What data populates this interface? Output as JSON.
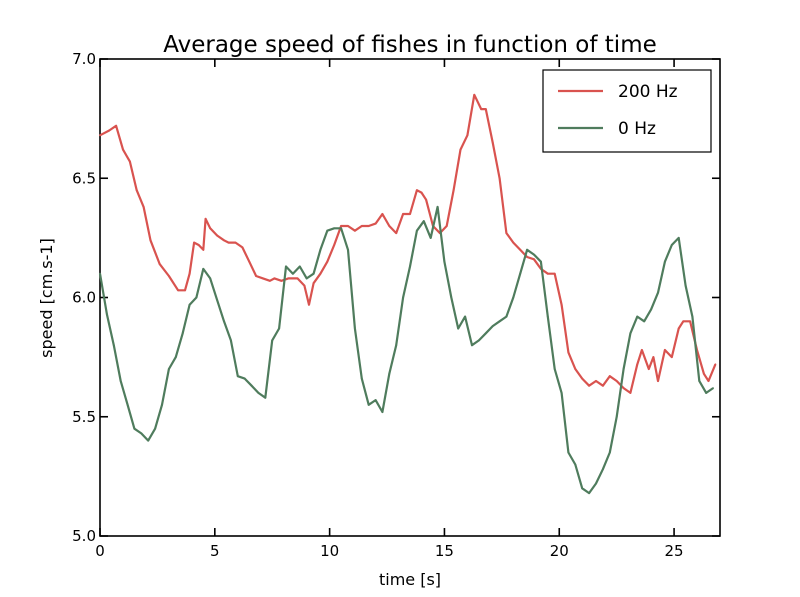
{
  "chart_data": {
    "type": "line",
    "title": "Average speed of fishes in function of time",
    "xlabel": "time [s]",
    "ylabel": "speed [cm.s-1]",
    "xlim": [
      0,
      27
    ],
    "ylim": [
      5.0,
      7.0
    ],
    "xticks": [
      0,
      5,
      10,
      15,
      20,
      25
    ],
    "yticks": [
      5.0,
      5.5,
      6.0,
      6.5,
      7.0
    ],
    "xtick_labels": [
      "0",
      "5",
      "10",
      "15",
      "20",
      "25"
    ],
    "ytick_labels": [
      "5.0",
      "5.5",
      "6.0",
      "6.5",
      "7.0"
    ],
    "grid": false,
    "legend_position": "top-right",
    "series": [
      {
        "name": "200 Hz",
        "color": "#d9534f",
        "x": [
          0,
          0.4,
          0.7,
          1.0,
          1.3,
          1.6,
          1.9,
          2.2,
          2.6,
          3.0,
          3.4,
          3.7,
          3.9,
          4.1,
          4.3,
          4.5,
          4.6,
          4.8,
          5.1,
          5.4,
          5.6,
          5.9,
          6.2,
          6.5,
          6.8,
          7.1,
          7.4,
          7.6,
          7.9,
          8.2,
          8.6,
          8.9,
          9.1,
          9.3,
          9.6,
          9.9,
          10.2,
          10.5,
          10.8,
          11.1,
          11.4,
          11.7,
          12.0,
          12.3,
          12.6,
          12.9,
          13.2,
          13.5,
          13.8,
          14.0,
          14.2,
          14.5,
          14.8,
          15.1,
          15.4,
          15.7,
          16.0,
          16.3,
          16.6,
          16.8,
          17.1,
          17.4,
          17.7,
          18.0,
          18.3,
          18.6,
          18.9,
          19.2,
          19.5,
          19.8,
          20.1,
          20.4,
          20.7,
          21.0,
          21.3,
          21.6,
          21.9,
          22.2,
          22.5,
          22.8,
          23.1,
          23.4,
          23.6,
          23.9,
          24.1,
          24.3,
          24.6,
          24.9,
          25.2,
          25.4,
          25.7,
          26.0,
          26.3,
          26.5,
          26.8
        ],
        "y": [
          6.68,
          6.7,
          6.72,
          6.62,
          6.57,
          6.45,
          6.38,
          6.24,
          6.14,
          6.09,
          6.03,
          6.03,
          6.1,
          6.23,
          6.22,
          6.2,
          6.33,
          6.29,
          6.26,
          6.24,
          6.23,
          6.23,
          6.21,
          6.15,
          6.09,
          6.08,
          6.07,
          6.08,
          6.07,
          6.08,
          6.08,
          6.05,
          5.97,
          6.06,
          6.1,
          6.15,
          6.22,
          6.3,
          6.3,
          6.28,
          6.3,
          6.3,
          6.31,
          6.35,
          6.3,
          6.27,
          6.35,
          6.35,
          6.45,
          6.44,
          6.41,
          6.3,
          6.27,
          6.3,
          6.45,
          6.62,
          6.68,
          6.85,
          6.79,
          6.79,
          6.65,
          6.5,
          6.27,
          6.23,
          6.2,
          6.17,
          6.16,
          6.12,
          6.1,
          6.1,
          5.97,
          5.77,
          5.7,
          5.66,
          5.63,
          5.65,
          5.63,
          5.67,
          5.65,
          5.62,
          5.6,
          5.72,
          5.78,
          5.7,
          5.75,
          5.65,
          5.78,
          5.75,
          5.87,
          5.9,
          5.9,
          5.78,
          5.68,
          5.65,
          5.72
        ]
      },
      {
        "name": "0 Hz",
        "color": "#4f7c5d",
        "x": [
          0,
          0.3,
          0.6,
          0.9,
          1.2,
          1.5,
          1.8,
          2.1,
          2.4,
          2.7,
          3.0,
          3.3,
          3.6,
          3.9,
          4.2,
          4.5,
          4.8,
          5.1,
          5.4,
          5.7,
          6.0,
          6.3,
          6.6,
          6.9,
          7.2,
          7.5,
          7.8,
          8.1,
          8.4,
          8.7,
          9.0,
          9.3,
          9.6,
          9.9,
          10.2,
          10.5,
          10.8,
          11.1,
          11.4,
          11.7,
          12.0,
          12.3,
          12.6,
          12.9,
          13.2,
          13.5,
          13.8,
          14.1,
          14.4,
          14.7,
          15.0,
          15.3,
          15.6,
          15.9,
          16.2,
          16.5,
          16.8,
          17.1,
          17.4,
          17.7,
          18.0,
          18.3,
          18.6,
          18.9,
          19.2,
          19.5,
          19.8,
          20.1,
          20.4,
          20.7,
          21.0,
          21.3,
          21.6,
          21.9,
          22.2,
          22.5,
          22.8,
          23.1,
          23.4,
          23.7,
          24.0,
          24.3,
          24.6,
          24.9,
          25.2,
          25.5,
          25.8,
          26.1,
          26.4,
          26.7
        ],
        "y": [
          6.1,
          5.93,
          5.8,
          5.65,
          5.55,
          5.45,
          5.43,
          5.4,
          5.45,
          5.55,
          5.7,
          5.75,
          5.85,
          5.97,
          6.0,
          6.12,
          6.08,
          5.99,
          5.9,
          5.82,
          5.67,
          5.66,
          5.63,
          5.6,
          5.58,
          5.82,
          5.87,
          6.13,
          6.1,
          6.13,
          6.08,
          6.1,
          6.2,
          6.28,
          6.29,
          6.29,
          6.2,
          5.87,
          5.66,
          5.55,
          5.57,
          5.52,
          5.68,
          5.8,
          6.0,
          6.13,
          6.28,
          6.32,
          6.25,
          6.38,
          6.15,
          6.0,
          5.87,
          5.92,
          5.8,
          5.82,
          5.85,
          5.88,
          5.9,
          5.92,
          6.0,
          6.1,
          6.2,
          6.18,
          6.15,
          5.92,
          5.7,
          5.6,
          5.35,
          5.3,
          5.2,
          5.18,
          5.22,
          5.28,
          5.35,
          5.5,
          5.7,
          5.85,
          5.92,
          5.9,
          5.95,
          6.02,
          6.15,
          6.22,
          6.25,
          6.05,
          5.92,
          5.65,
          5.6,
          5.62
        ]
      }
    ]
  }
}
